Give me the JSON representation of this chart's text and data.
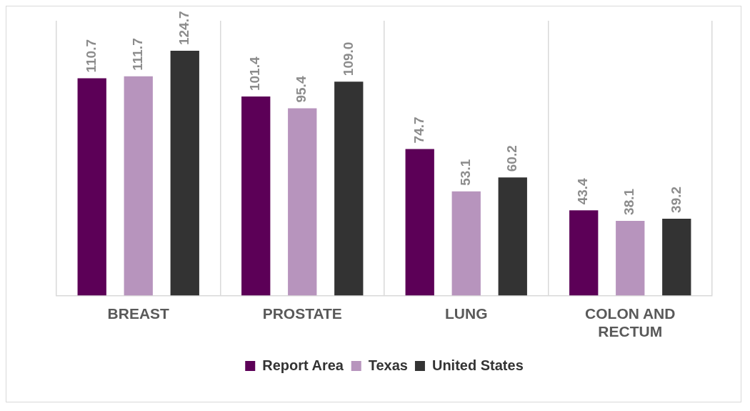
{
  "chart_data": {
    "type": "bar",
    "categories": [
      "BREAST",
      "PROSTATE",
      "LUNG",
      "COLON AND RECTUM"
    ],
    "series": [
      {
        "name": "Report Area",
        "color": "#5c0057",
        "values": [
          110.7,
          101.4,
          74.7,
          43.4
        ],
        "value_labels": [
          "110.7",
          "101.4",
          "74.7",
          "43.4"
        ]
      },
      {
        "name": "Texas",
        "color": "#b794bd",
        "values": [
          111.7,
          95.4,
          53.1,
          38.1
        ],
        "value_labels": [
          "111.7",
          "95.4",
          "53.1",
          "38.1"
        ]
      },
      {
        "name": "United States",
        "color": "#333333",
        "values": [
          124.7,
          109.0,
          60.2,
          39.2
        ],
        "value_labels": [
          "124.7",
          "109.0",
          "60.2",
          "39.2"
        ]
      }
    ],
    "grid": "x",
    "legend": "bottom"
  }
}
